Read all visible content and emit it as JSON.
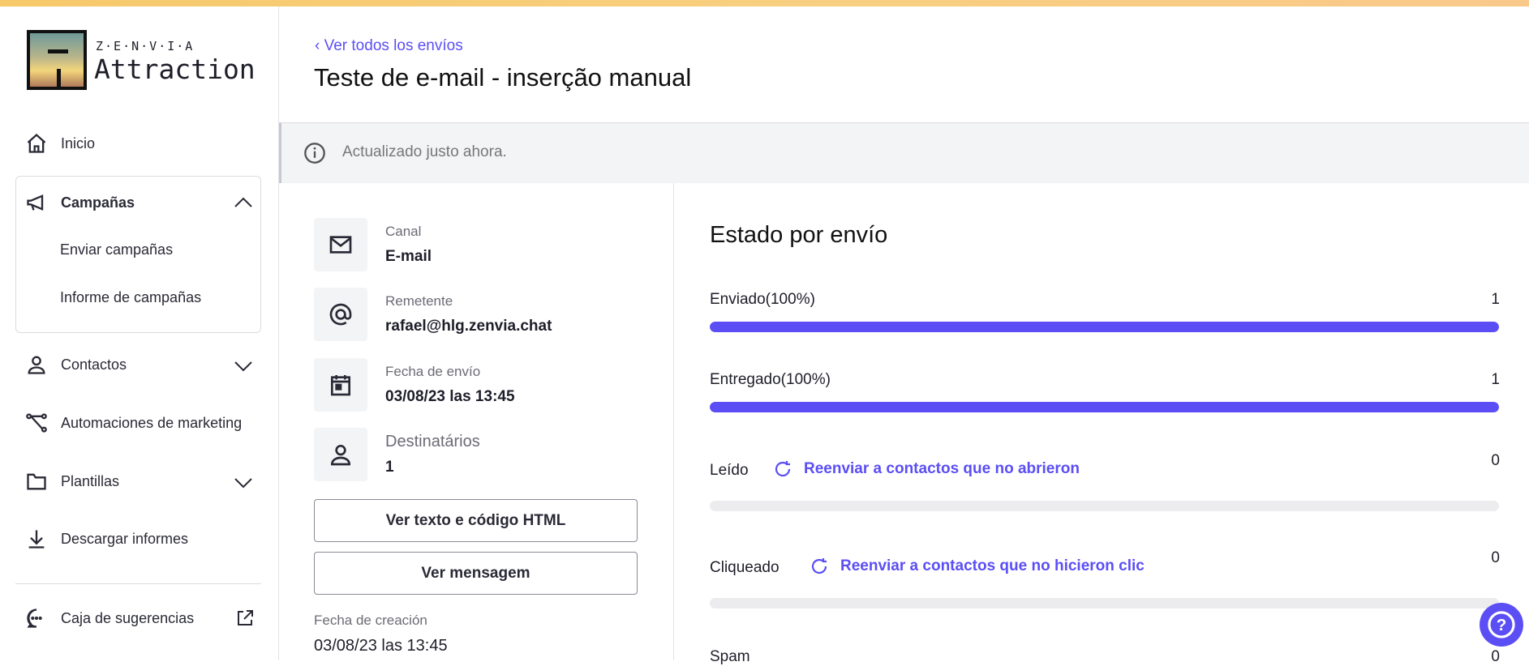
{
  "logo": {
    "brand": "Z·E·N·V·I·A",
    "product": "Attraction"
  },
  "sidebar": {
    "inicio": "Inicio",
    "campanas": {
      "label": "Campañas",
      "items": [
        "Enviar campañas",
        "Informe de campañas"
      ]
    },
    "contactos": "Contactos",
    "automaciones": "Automaciones de marketing",
    "plantillas": "Plantillas",
    "descargar": "Descargar informes",
    "sugerencias": "Caja de sugerencias"
  },
  "header": {
    "back": "Ver todos los envíos",
    "title": "Teste de e-mail - inserção manual"
  },
  "banner": {
    "text": "Actualizado justo ahora."
  },
  "details": [
    {
      "icon": "mail-icon",
      "label": "Canal",
      "value": "E-mail"
    },
    {
      "icon": "at-icon",
      "label": "Remetente",
      "value": "rafael@hlg.zenvia.chat"
    },
    {
      "icon": "calendar-icon",
      "label": "Fecha de envío",
      "value": "03/08/23 las 13:45"
    },
    {
      "icon": "user-icon",
      "label": "Destinatários",
      "value": "1"
    }
  ],
  "buttons": {
    "html": "Ver texto e código HTML",
    "message": "Ver mensagem"
  },
  "creation": {
    "label": "Fecha de creación",
    "value": "03/08/23 las 13:45"
  },
  "status": {
    "title": "Estado por envío",
    "accent": "#5b4ef5",
    "rows": [
      {
        "label": "Enviado(100%)",
        "count": "1",
        "progress": 100
      },
      {
        "label": "Entregado(100%)",
        "count": "1",
        "progress": 100
      },
      {
        "label": "Leído",
        "count": "0",
        "progress": 0,
        "resend": "Reenviar a contactos que no abrieron"
      },
      {
        "label": "Cliqueado",
        "count": "0",
        "progress": 0,
        "resend": "Reenviar a contactos que no hicieron clic"
      },
      {
        "label": "Spam",
        "count": "0"
      }
    ]
  }
}
